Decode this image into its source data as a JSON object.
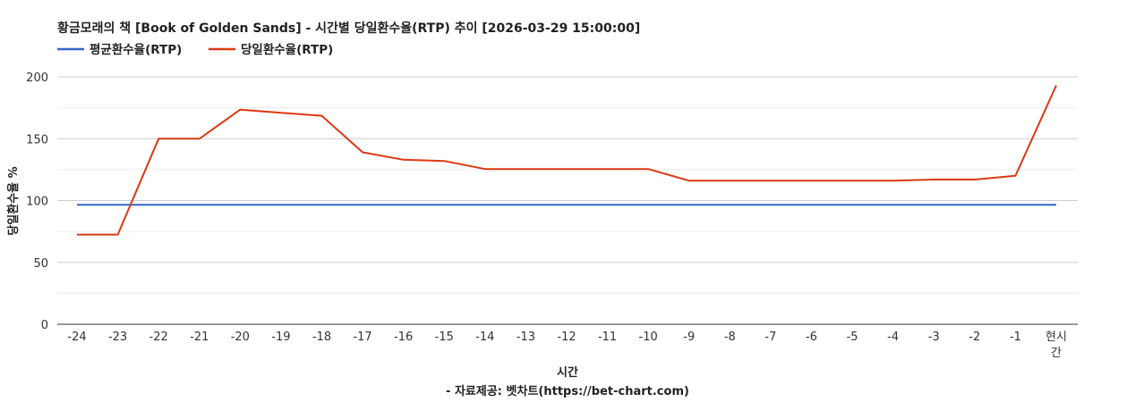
{
  "chart_data": {
    "type": "line",
    "title": "황금모래의 책 [Book of Golden Sands] - 시간별 당일환수율(RTP) 추이 [2026-03-29 15:00:00]",
    "xlabel": "시간",
    "ylabel": "당일환수율 %",
    "credit": "- 자료제공: 벳차트(https://bet-chart.com)",
    "ylim": [
      0,
      200
    ],
    "yticks": [
      "0",
      "50",
      "100",
      "150",
      "200"
    ],
    "grid": true,
    "legend_position": "top-left",
    "x": [
      "-24",
      "-23",
      "-22",
      "-21",
      "-20",
      "-19",
      "-18",
      "-17",
      "-16",
      "-15",
      "-14",
      "-13",
      "-12",
      "-11",
      "-10",
      "-9",
      "-8",
      "-7",
      "-6",
      "-5",
      "-4",
      "-3",
      "-2",
      "-1",
      "현시간"
    ],
    "x_last_label_lines": [
      "현시",
      "간"
    ],
    "series": [
      {
        "name": "평균환수율(RTP)",
        "color": "#3366cc",
        "values": [
          96.5,
          96.5,
          96.5,
          96.5,
          96.5,
          96.5,
          96.5,
          96.5,
          96.5,
          96.5,
          96.5,
          96.5,
          96.5,
          96.5,
          96.5,
          96.5,
          96.5,
          96.5,
          96.5,
          96.5,
          96.5,
          96.5,
          96.5,
          96.5,
          96.5
        ]
      },
      {
        "name": "당일환수율(RTP)",
        "color": "#dc3912",
        "values": [
          72.5,
          72.5,
          150,
          150,
          173.5,
          171,
          168.5,
          139,
          133,
          132,
          125.5,
          125.5,
          125.5,
          125.5,
          125.5,
          116,
          116,
          116,
          116,
          116,
          116,
          117,
          117,
          120,
          193
        ]
      }
    ]
  }
}
